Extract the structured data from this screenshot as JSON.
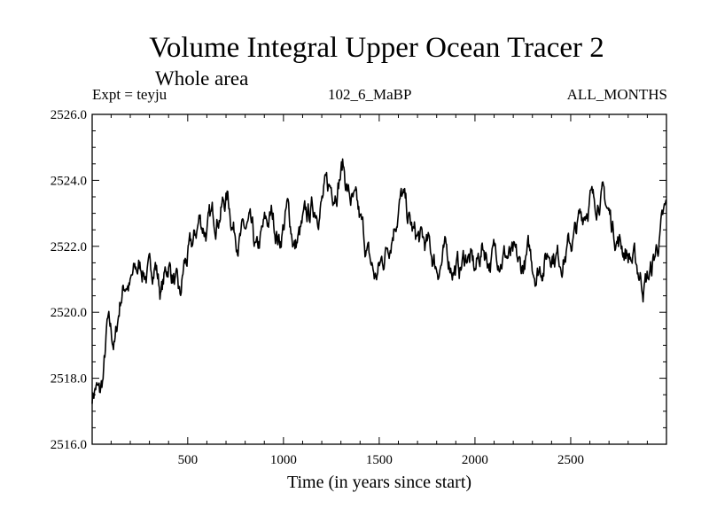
{
  "chart_data": {
    "type": "line",
    "title": "Volume Integral Upper Ocean Tracer 2",
    "subtitle": "Whole area",
    "annotations": {
      "left": "Expt = teyju",
      "center": "102_6_MaBP",
      "right": "ALL_MONTHS"
    },
    "xlabel": "Time (in years since start)",
    "ylabel": "",
    "xlim": [
      1,
      3000
    ],
    "ylim": [
      2516.0,
      2526.0
    ],
    "xticks": [
      500,
      1000,
      1500,
      2000,
      2500
    ],
    "xtick_labels": [
      "500",
      "1000",
      "1500",
      "2000",
      "2500"
    ],
    "yticks": [
      2516.0,
      2518.0,
      2520.0,
      2522.0,
      2524.0,
      2526.0
    ],
    "ytick_labels": [
      "2516.0",
      "2518.0",
      "2520.0",
      "2522.0",
      "2524.0",
      "2526.0"
    ],
    "series": [
      {
        "name": "Volume Integral Upper Ocean Tracer 2",
        "color": "#000000",
        "x": [
          1,
          20,
          40,
          60,
          80,
          100,
          120,
          150,
          180,
          200,
          230,
          260,
          300,
          330,
          360,
          400,
          430,
          460,
          480,
          500,
          530,
          560,
          600,
          640,
          680,
          710,
          740,
          780,
          820,
          860,
          900,
          940,
          980,
          1020,
          1060,
          1100,
          1140,
          1180,
          1220,
          1260,
          1290,
          1310,
          1340,
          1380,
          1420,
          1450,
          1480,
          1520,
          1560,
          1600,
          1620,
          1650,
          1680,
          1720,
          1760,
          1800,
          1840,
          1880,
          1920,
          1960,
          2000,
          2040,
          2080,
          2120,
          2160,
          2200,
          2240,
          2280,
          2320,
          2360,
          2400,
          2440,
          2480,
          2520,
          2560,
          2600,
          2620,
          2650,
          2680,
          2720,
          2760,
          2800,
          2840,
          2880,
          2920,
          2960,
          3000
        ],
        "values": [
          2517.5,
          2517.8,
          2517.4,
          2518.0,
          2519.5,
          2519.2,
          2519.0,
          2520.5,
          2521.0,
          2520.8,
          2521.2,
          2521.4,
          2521.1,
          2521.6,
          2520.6,
          2521.5,
          2521.0,
          2520.2,
          2521.3,
          2521.6,
          2522.0,
          2522.8,
          2522.5,
          2522.9,
          2523.3,
          2523.5,
          2522.6,
          2522.3,
          2522.5,
          2521.6,
          2522.5,
          2522.9,
          2522.2,
          2523.1,
          2522.0,
          2522.5,
          2523.0,
          2523.3,
          2523.6,
          2523.8,
          2524.2,
          2524.5,
          2523.6,
          2523.0,
          2522.2,
          2521.5,
          2521.0,
          2521.6,
          2522.4,
          2523.3,
          2523.5,
          2522.8,
          2522.3,
          2522.1,
          2521.9,
          2521.4,
          2521.7,
          2521.5,
          2521.3,
          2521.8,
          2521.2,
          2522.0,
          2521.6,
          2521.9,
          2521.8,
          2521.5,
          2521.2,
          2521.7,
          2521.3,
          2521.6,
          2522.0,
          2521.7,
          2521.9,
          2522.3,
          2522.9,
          2523.6,
          2523.2,
          2523.7,
          2523.3,
          2522.6,
          2522.1,
          2521.8,
          2521.4,
          2520.9,
          2521.2,
          2522.2,
          2523.0
        ]
      }
    ]
  }
}
